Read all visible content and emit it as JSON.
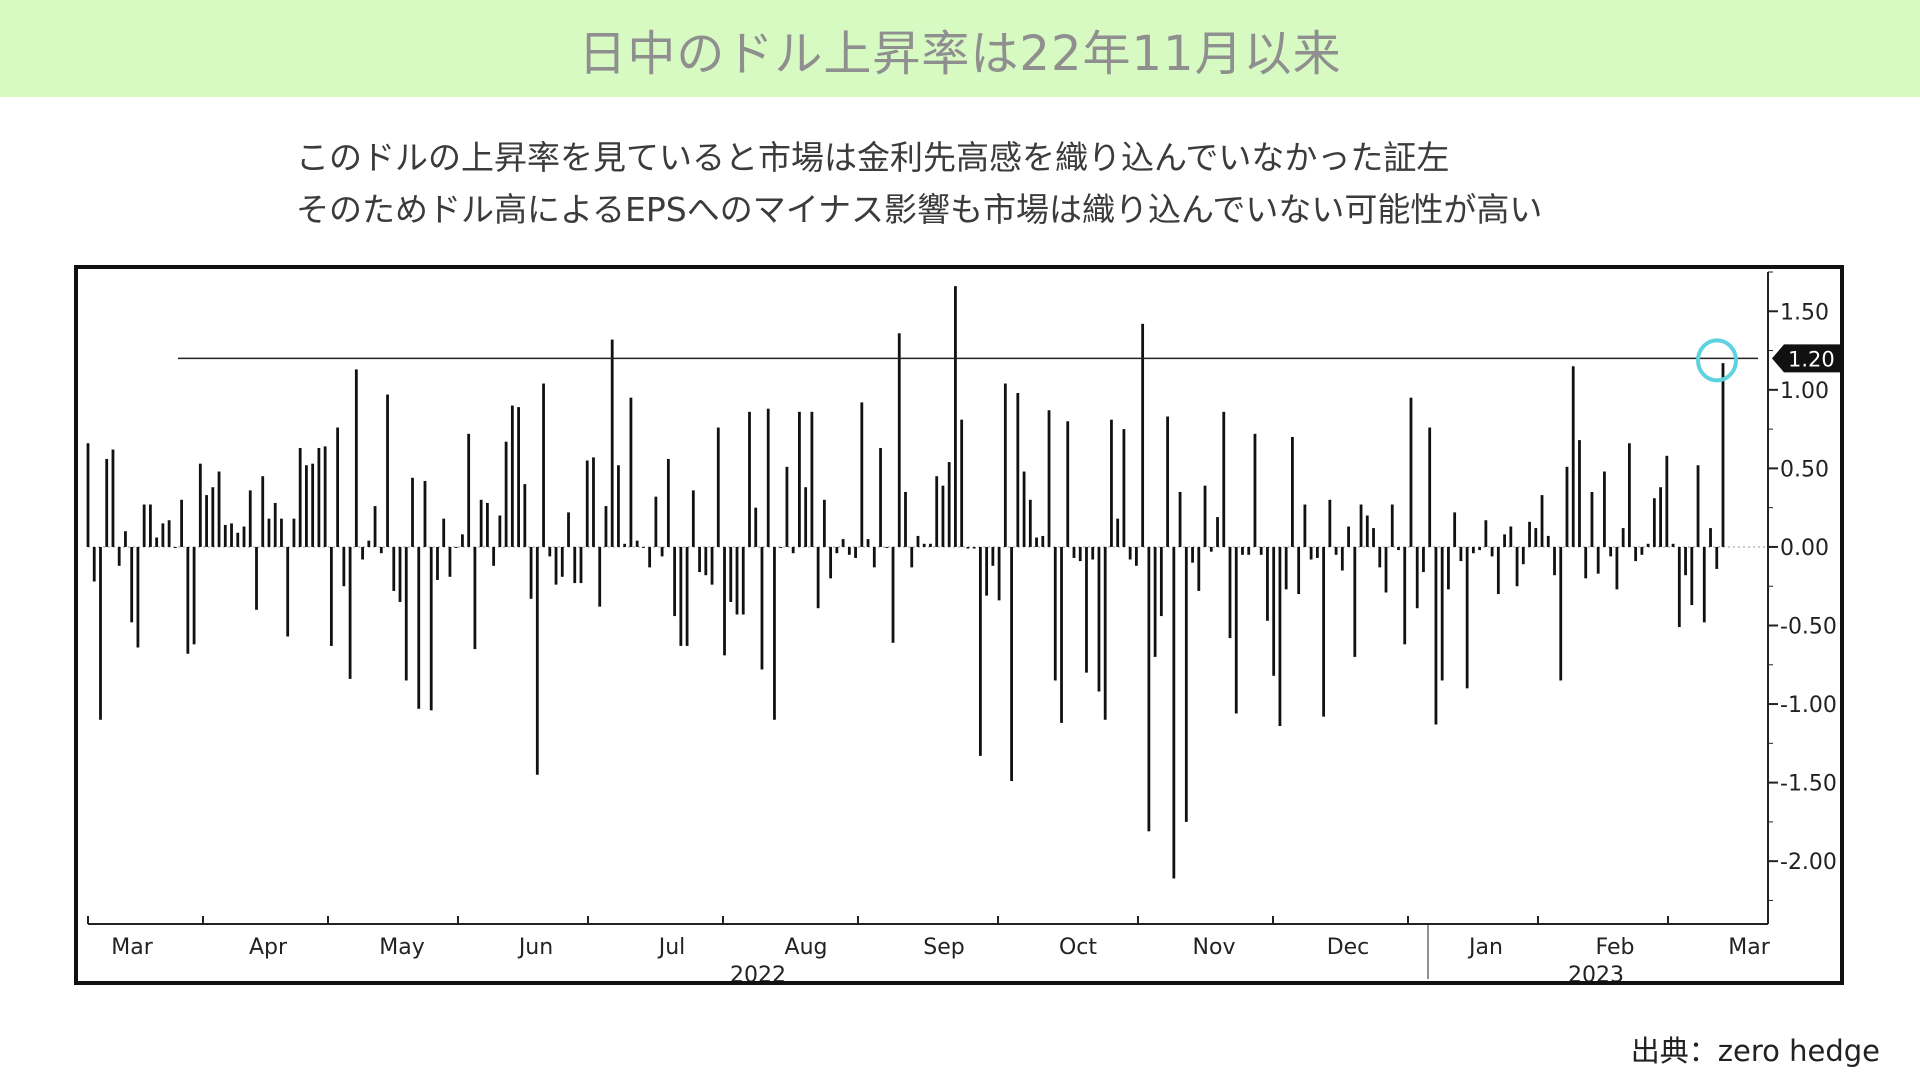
{
  "header": {
    "title": "日中のドル上昇率は22年11月以来"
  },
  "subtitle": {
    "line1": "このドルの上昇率を見ていると市場は金利先高感を織り込んでいなかった証左",
    "line2": "そのためドル高によるEPSへのマイナス影響も市場は織り込んでいない可能性が高い"
  },
  "footer": {
    "source": "出典：zero hedge"
  },
  "colors": {
    "header_bg": "#d7f9c2",
    "bar": "#111111",
    "reference_line": "#222222",
    "highlight_circle": "#5ed3de",
    "tag_bg": "#111111"
  },
  "chart_data": {
    "type": "bar",
    "title": "",
    "xlabel": "",
    "ylabel": "",
    "ylim": [
      -2.4,
      1.75
    ],
    "yticks": [
      "1.50",
      "1.00",
      "0.50",
      "0.00",
      "-0.50",
      "-1.00",
      "-1.50",
      "-2.00"
    ],
    "ytick_values": [
      1.5,
      1.0,
      0.5,
      0.0,
      -0.5,
      -1.0,
      -1.5,
      -2.0
    ],
    "month_labels": [
      "Mar",
      "Apr",
      "May",
      "Jun",
      "Jul",
      "Aug",
      "Sep",
      "Oct",
      "Nov",
      "Dec",
      "Jan",
      "Feb",
      "Mar"
    ],
    "year_labels": [
      "2022",
      "2023"
    ],
    "reference_line": {
      "value": 1.2,
      "label": "1.20"
    },
    "highlight": "last bar circled",
    "grid": false,
    "series": [
      {
        "values": [
          0.66,
          -0.22,
          -1.1,
          0.56,
          0.62,
          -0.12,
          0.1,
          -0.48,
          -0.64,
          0.27,
          0.27,
          0.06,
          0.15,
          0.17,
          0.0,
          0.3,
          -0.68,
          -0.62,
          0.53,
          0.33,
          0.38,
          0.48,
          0.14,
          0.15,
          0.09,
          0.13,
          0.36,
          -0.4,
          0.45,
          0.18,
          0.28,
          0.18,
          -0.57,
          0.18,
          0.63,
          0.52,
          0.53,
          0.63,
          0.64,
          -0.63,
          0.76,
          -0.25,
          -0.84,
          1.13,
          -0.08,
          0.04,
          0.26,
          -0.04,
          0.97,
          -0.28,
          -0.35,
          -0.85,
          0.44,
          -1.03,
          0.42,
          -1.04,
          -0.21,
          0.18,
          -0.19,
          0.0,
          0.08,
          0.72,
          -0.65,
          0.3,
          0.28,
          -0.12,
          0.2,
          0.67,
          0.9,
          0.89,
          0.4,
          -0.33,
          -1.45,
          1.04,
          -0.06,
          -0.24,
          -0.19,
          0.22,
          -0.23,
          -0.23,
          0.55,
          0.57,
          -0.38,
          0.26,
          1.32,
          0.52,
          0.02,
          0.95,
          0.04,
          0.0,
          -0.13,
          0.32,
          -0.06,
          0.56,
          -0.44,
          -0.63,
          -0.63,
          0.36,
          -0.16,
          -0.18,
          -0.24,
          0.76,
          -0.69,
          -0.35,
          -0.43,
          -0.43,
          0.86,
          0.25,
          -0.78,
          0.88,
          -1.1,
          0.0,
          0.51,
          -0.04,
          0.86,
          0.38,
          0.86,
          -0.39,
          0.3,
          -0.2,
          -0.04,
          0.05,
          -0.05,
          -0.07,
          0.92,
          0.05,
          -0.13,
          0.63,
          0.0,
          -0.61,
          1.36,
          0.35,
          -0.13,
          0.07,
          0.02,
          0.02,
          0.45,
          0.39,
          0.54,
          1.66,
          0.81,
          -0.01,
          -0.01,
          -1.33,
          -0.31,
          -0.12,
          -0.34,
          1.04,
          -1.49,
          0.98,
          0.48,
          0.3,
          0.06,
          0.07,
          0.87,
          -0.85,
          -1.12,
          0.8,
          -0.07,
          -0.09,
          -0.8,
          -0.08,
          -0.92,
          -1.1,
          0.81,
          0.18,
          0.75,
          -0.08,
          -0.12,
          1.42,
          -1.81,
          -0.7,
          -0.44,
          0.83,
          -2.11,
          0.35,
          -1.75,
          -0.1,
          -0.28,
          0.39,
          -0.03,
          0.19,
          0.86,
          -0.58,
          -1.06,
          -0.05,
          -0.05,
          0.72,
          -0.05,
          -0.47,
          -0.82,
          -1.14,
          -0.27,
          0.7,
          -0.3,
          0.27,
          -0.08,
          -0.07,
          -1.08,
          0.3,
          -0.05,
          -0.15,
          0.13,
          -0.7,
          0.27,
          0.2,
          0.12,
          -0.13,
          -0.29,
          0.27,
          -0.02,
          -0.62,
          0.95,
          -0.39,
          -0.16,
          0.76,
          -1.13,
          -0.85,
          -0.27,
          0.22,
          -0.09,
          -0.9,
          -0.04,
          -0.02,
          0.17,
          -0.06,
          -0.3,
          0.08,
          0.13,
          -0.25,
          -0.11,
          0.16,
          0.12,
          0.33,
          0.07,
          -0.18,
          -0.85,
          0.51,
          1.15,
          0.68,
          -0.2,
          0.35,
          -0.17,
          0.48,
          -0.06,
          -0.27,
          0.12,
          0.66,
          -0.09,
          -0.05,
          0.02,
          0.31,
          0.38,
          0.58,
          0.02,
          -0.51,
          -0.18,
          -0.37,
          0.52,
          -0.48,
          0.12,
          -0.14,
          1.17
        ]
      }
    ]
  }
}
